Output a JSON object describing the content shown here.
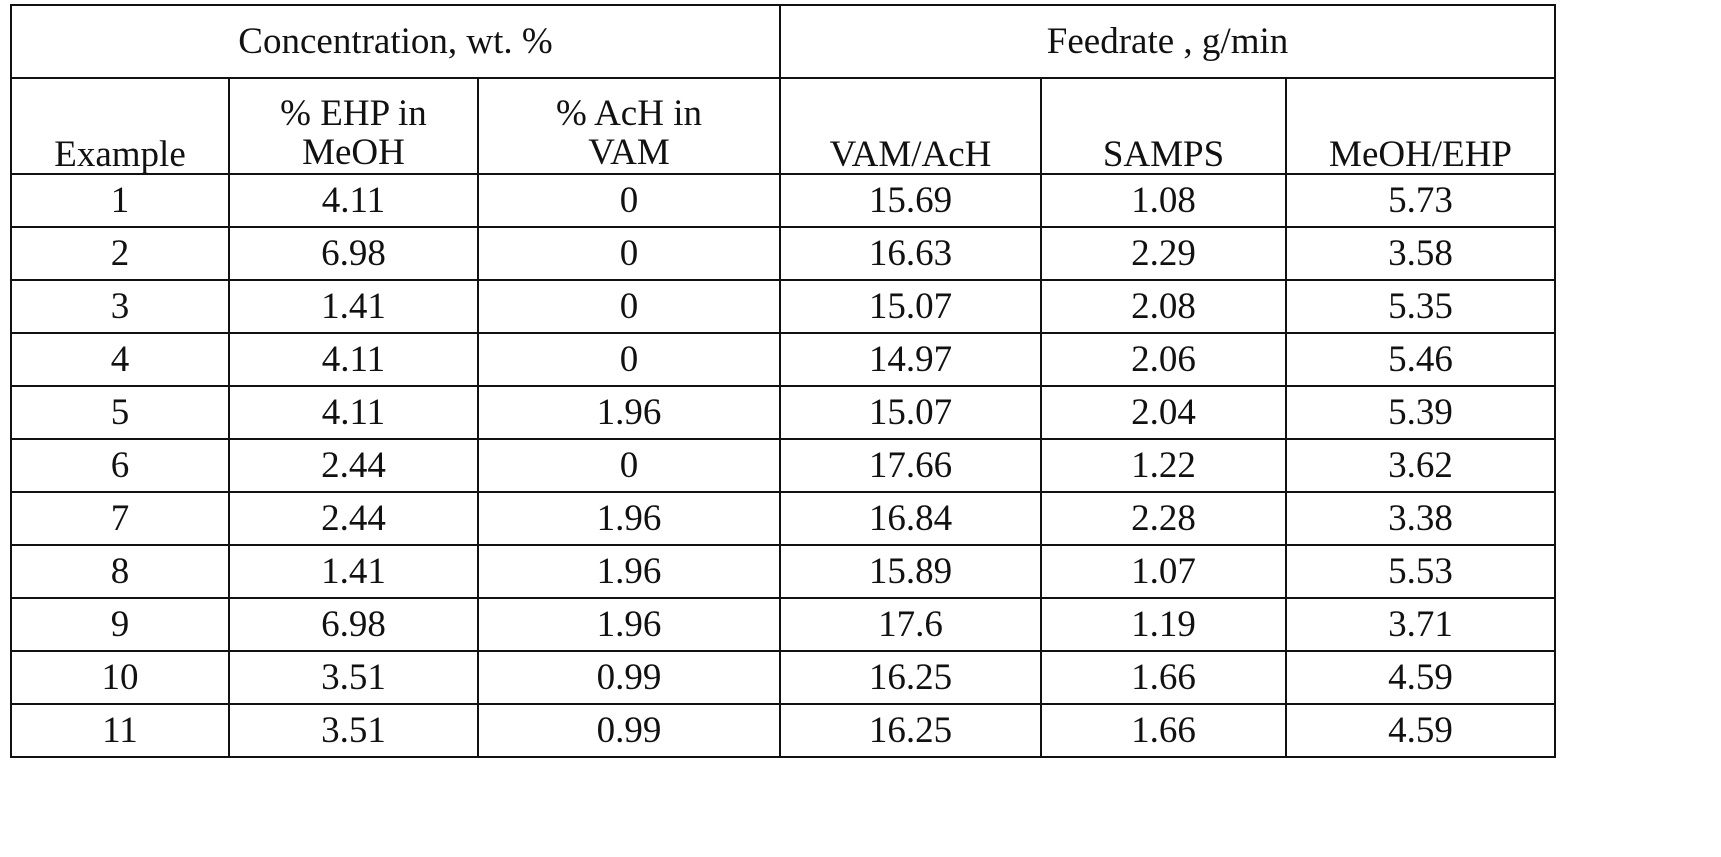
{
  "table": {
    "group_headers": {
      "concentration": "Concentration, wt. %",
      "feedrate": "Feedrate , g/min"
    },
    "column_headers": {
      "example": "Example",
      "ehp_line1": "% EHP in",
      "ehp_line2": "MeOH",
      "ach_line1": "% AcH in",
      "ach_line2": "VAM",
      "vam_ach": "VAM/AcH",
      "samps": "SAMPS",
      "meoh_ehp": "MeOH/EHP"
    },
    "rows": [
      {
        "example": "1",
        "ehp": "4.11",
        "ach": "0",
        "vam_ach": "15.69",
        "samps": "1.08",
        "meoh_ehp": "5.73"
      },
      {
        "example": "2",
        "ehp": "6.98",
        "ach": "0",
        "vam_ach": "16.63",
        "samps": "2.29",
        "meoh_ehp": "3.58"
      },
      {
        "example": "3",
        "ehp": "1.41",
        "ach": "0",
        "vam_ach": "15.07",
        "samps": "2.08",
        "meoh_ehp": "5.35"
      },
      {
        "example": "4",
        "ehp": "4.11",
        "ach": "0",
        "vam_ach": "14.97",
        "samps": "2.06",
        "meoh_ehp": "5.46"
      },
      {
        "example": "5",
        "ehp": "4.11",
        "ach": "1.96",
        "vam_ach": "15.07",
        "samps": "2.04",
        "meoh_ehp": "5.39"
      },
      {
        "example": "6",
        "ehp": "2.44",
        "ach": "0",
        "vam_ach": "17.66",
        "samps": "1.22",
        "meoh_ehp": "3.62"
      },
      {
        "example": "7",
        "ehp": "2.44",
        "ach": "1.96",
        "vam_ach": "16.84",
        "samps": "2.28",
        "meoh_ehp": "3.38"
      },
      {
        "example": "8",
        "ehp": "1.41",
        "ach": "1.96",
        "vam_ach": "15.89",
        "samps": "1.07",
        "meoh_ehp": "5.53"
      },
      {
        "example": "9",
        "ehp": "6.98",
        "ach": "1.96",
        "vam_ach": "17.6",
        "samps": "1.19",
        "meoh_ehp": "3.71"
      },
      {
        "example": "10",
        "ehp": "3.51",
        "ach": "0.99",
        "vam_ach": "16.25",
        "samps": "1.66",
        "meoh_ehp": "4.59"
      },
      {
        "example": "11",
        "ehp": "3.51",
        "ach": "0.99",
        "vam_ach": "16.25",
        "samps": "1.66",
        "meoh_ehp": "4.59"
      }
    ]
  }
}
